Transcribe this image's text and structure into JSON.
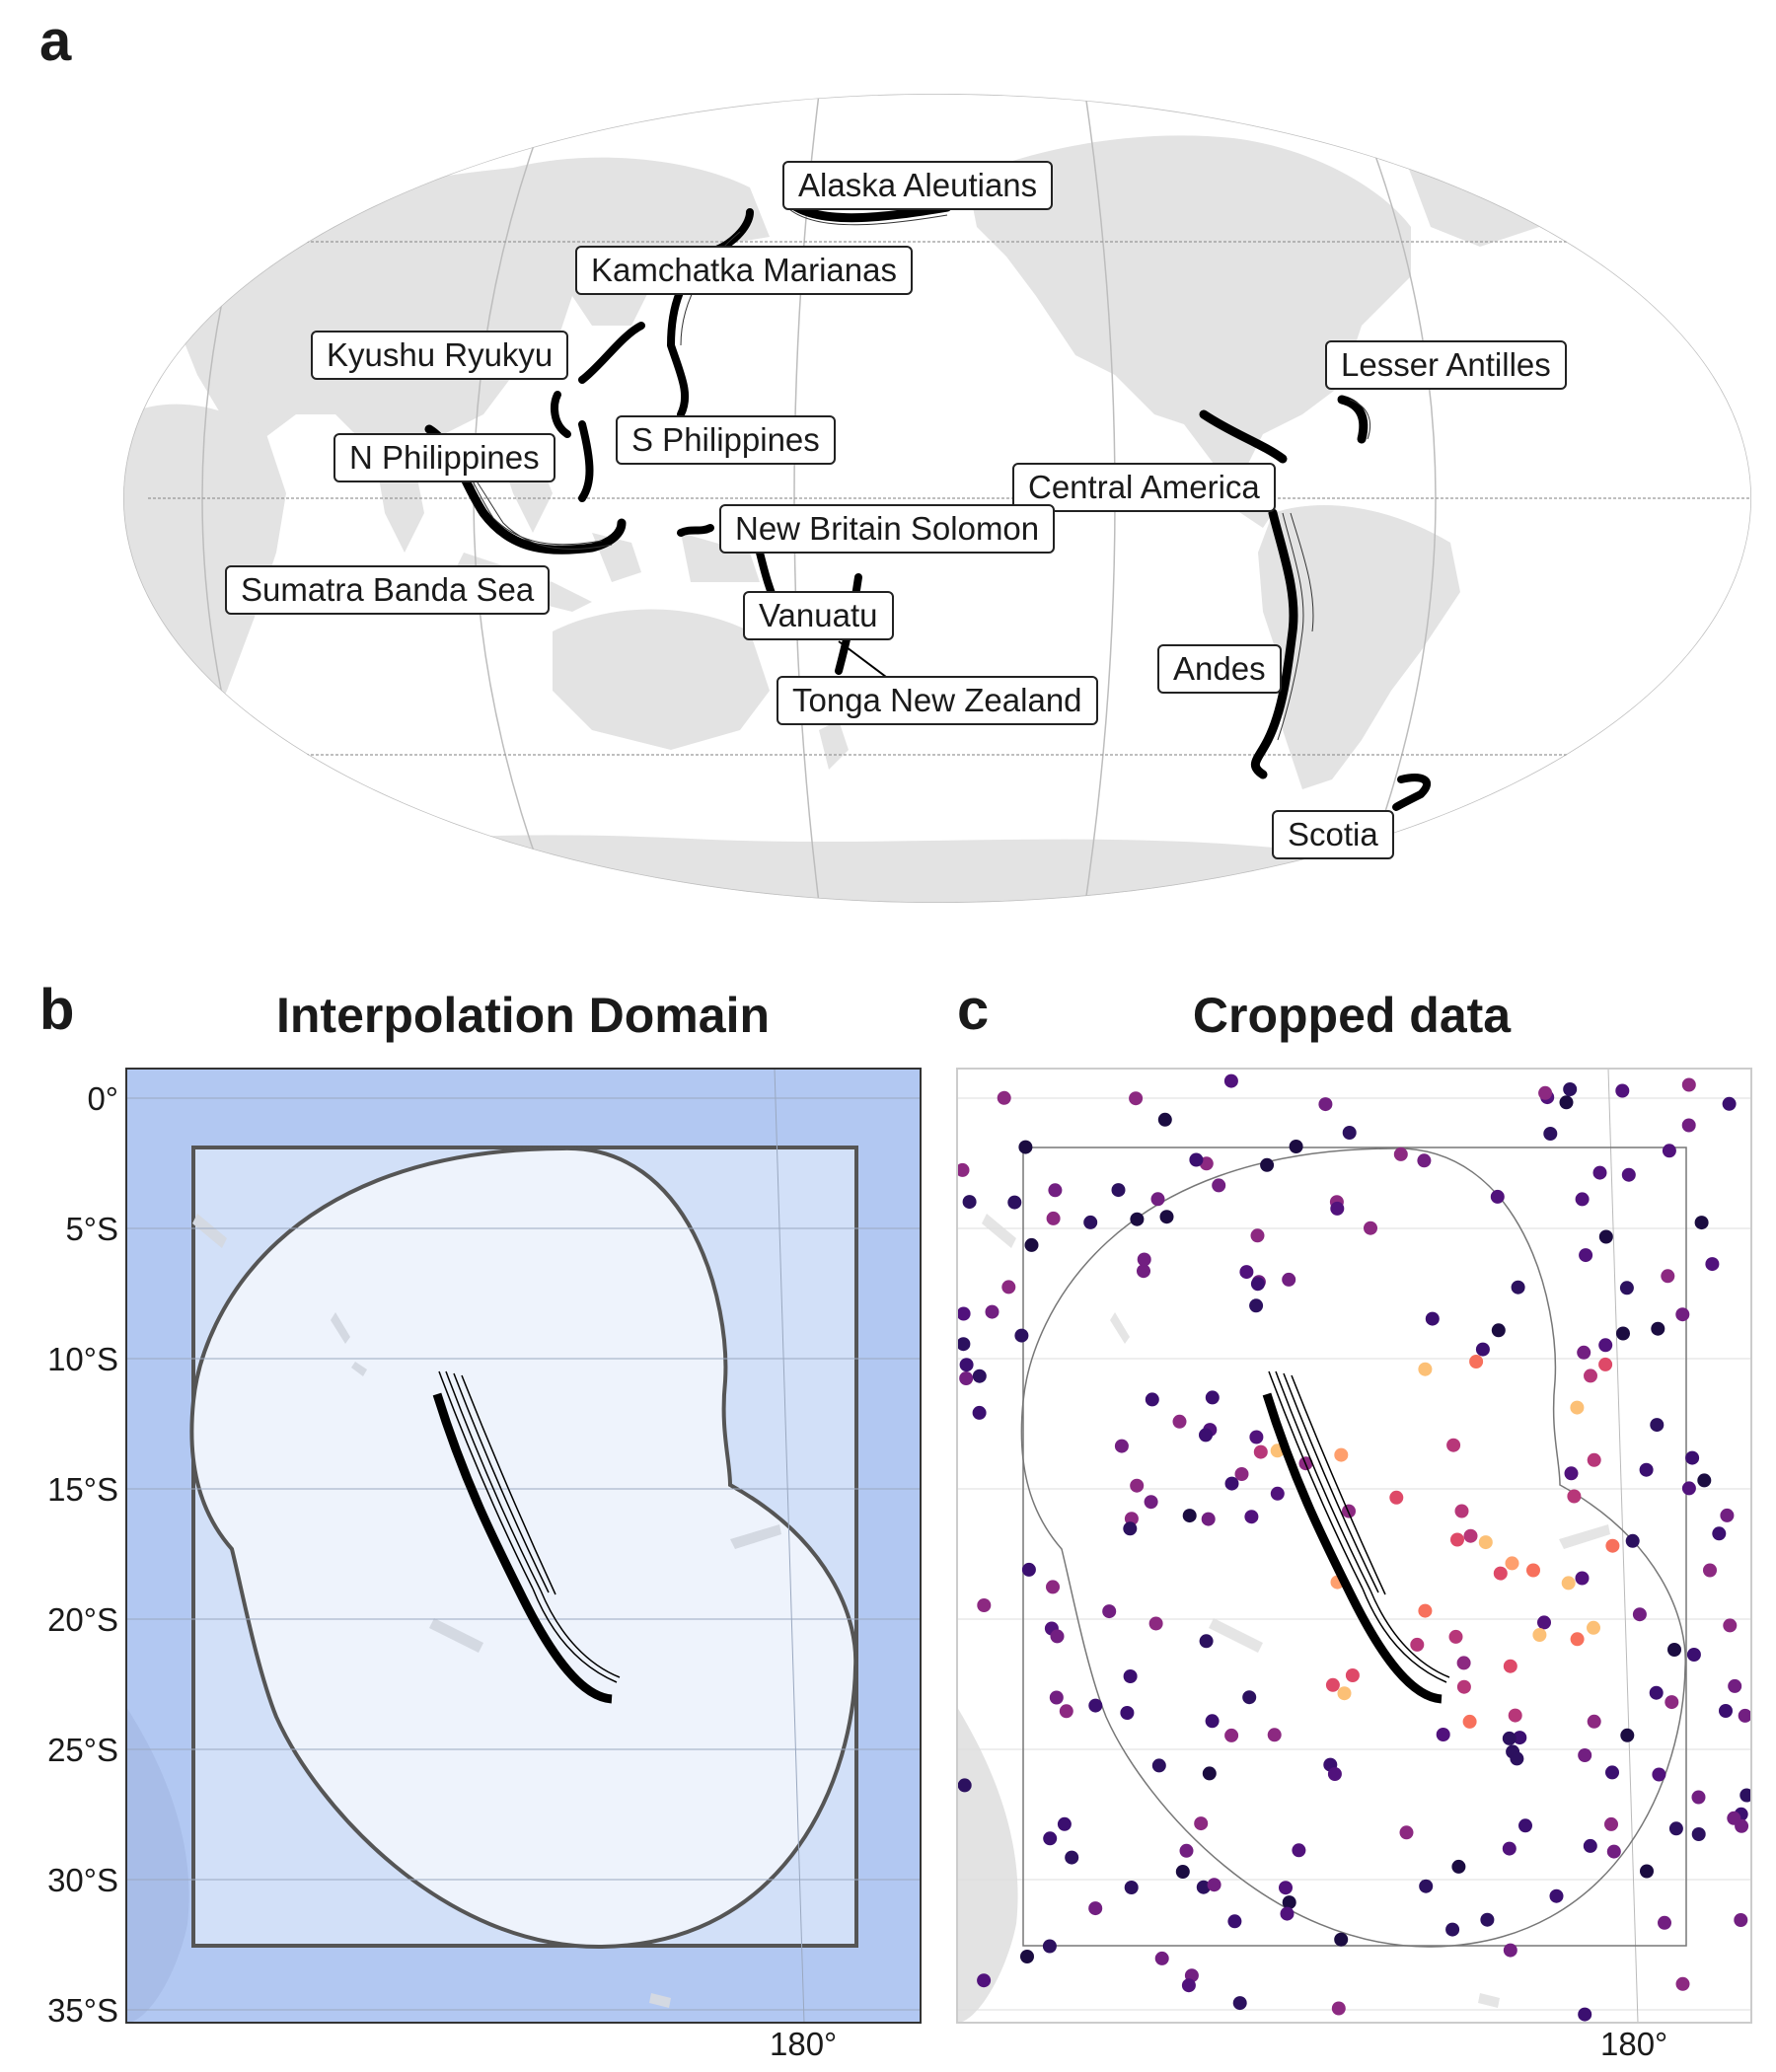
{
  "panels": {
    "a": {
      "letter": "a"
    },
    "b": {
      "letter": "b",
      "title": "Interpolation Domain"
    },
    "c": {
      "letter": "c",
      "title": "Cropped data"
    }
  },
  "subduction_zones": [
    "Alaska Aleutians",
    "Kamchatka Marianas",
    "Kyushu Ryukyu",
    "Lesser Antilles",
    "S Philippines",
    "N Philippines",
    "Central America",
    "New Britain Solomon",
    "Sumatra Banda Sea",
    "Vanuatu",
    "Andes",
    "Tonga New Zealand",
    "Scotia"
  ],
  "lat_ticks": [
    "0°",
    "5°S",
    "10°S",
    "15°S",
    "20°S",
    "25°S",
    "30°S",
    "35°S"
  ],
  "lon_tick": "180°",
  "colors": {
    "land": "#e3e3e3",
    "ocean_b": "#b2c8f2",
    "box_b": "#d2e0f8",
    "domain_b": "#eef3fc",
    "slab": "#000000",
    "graticule": "#bdbdbd"
  },
  "scatter_palette": "magma"
}
